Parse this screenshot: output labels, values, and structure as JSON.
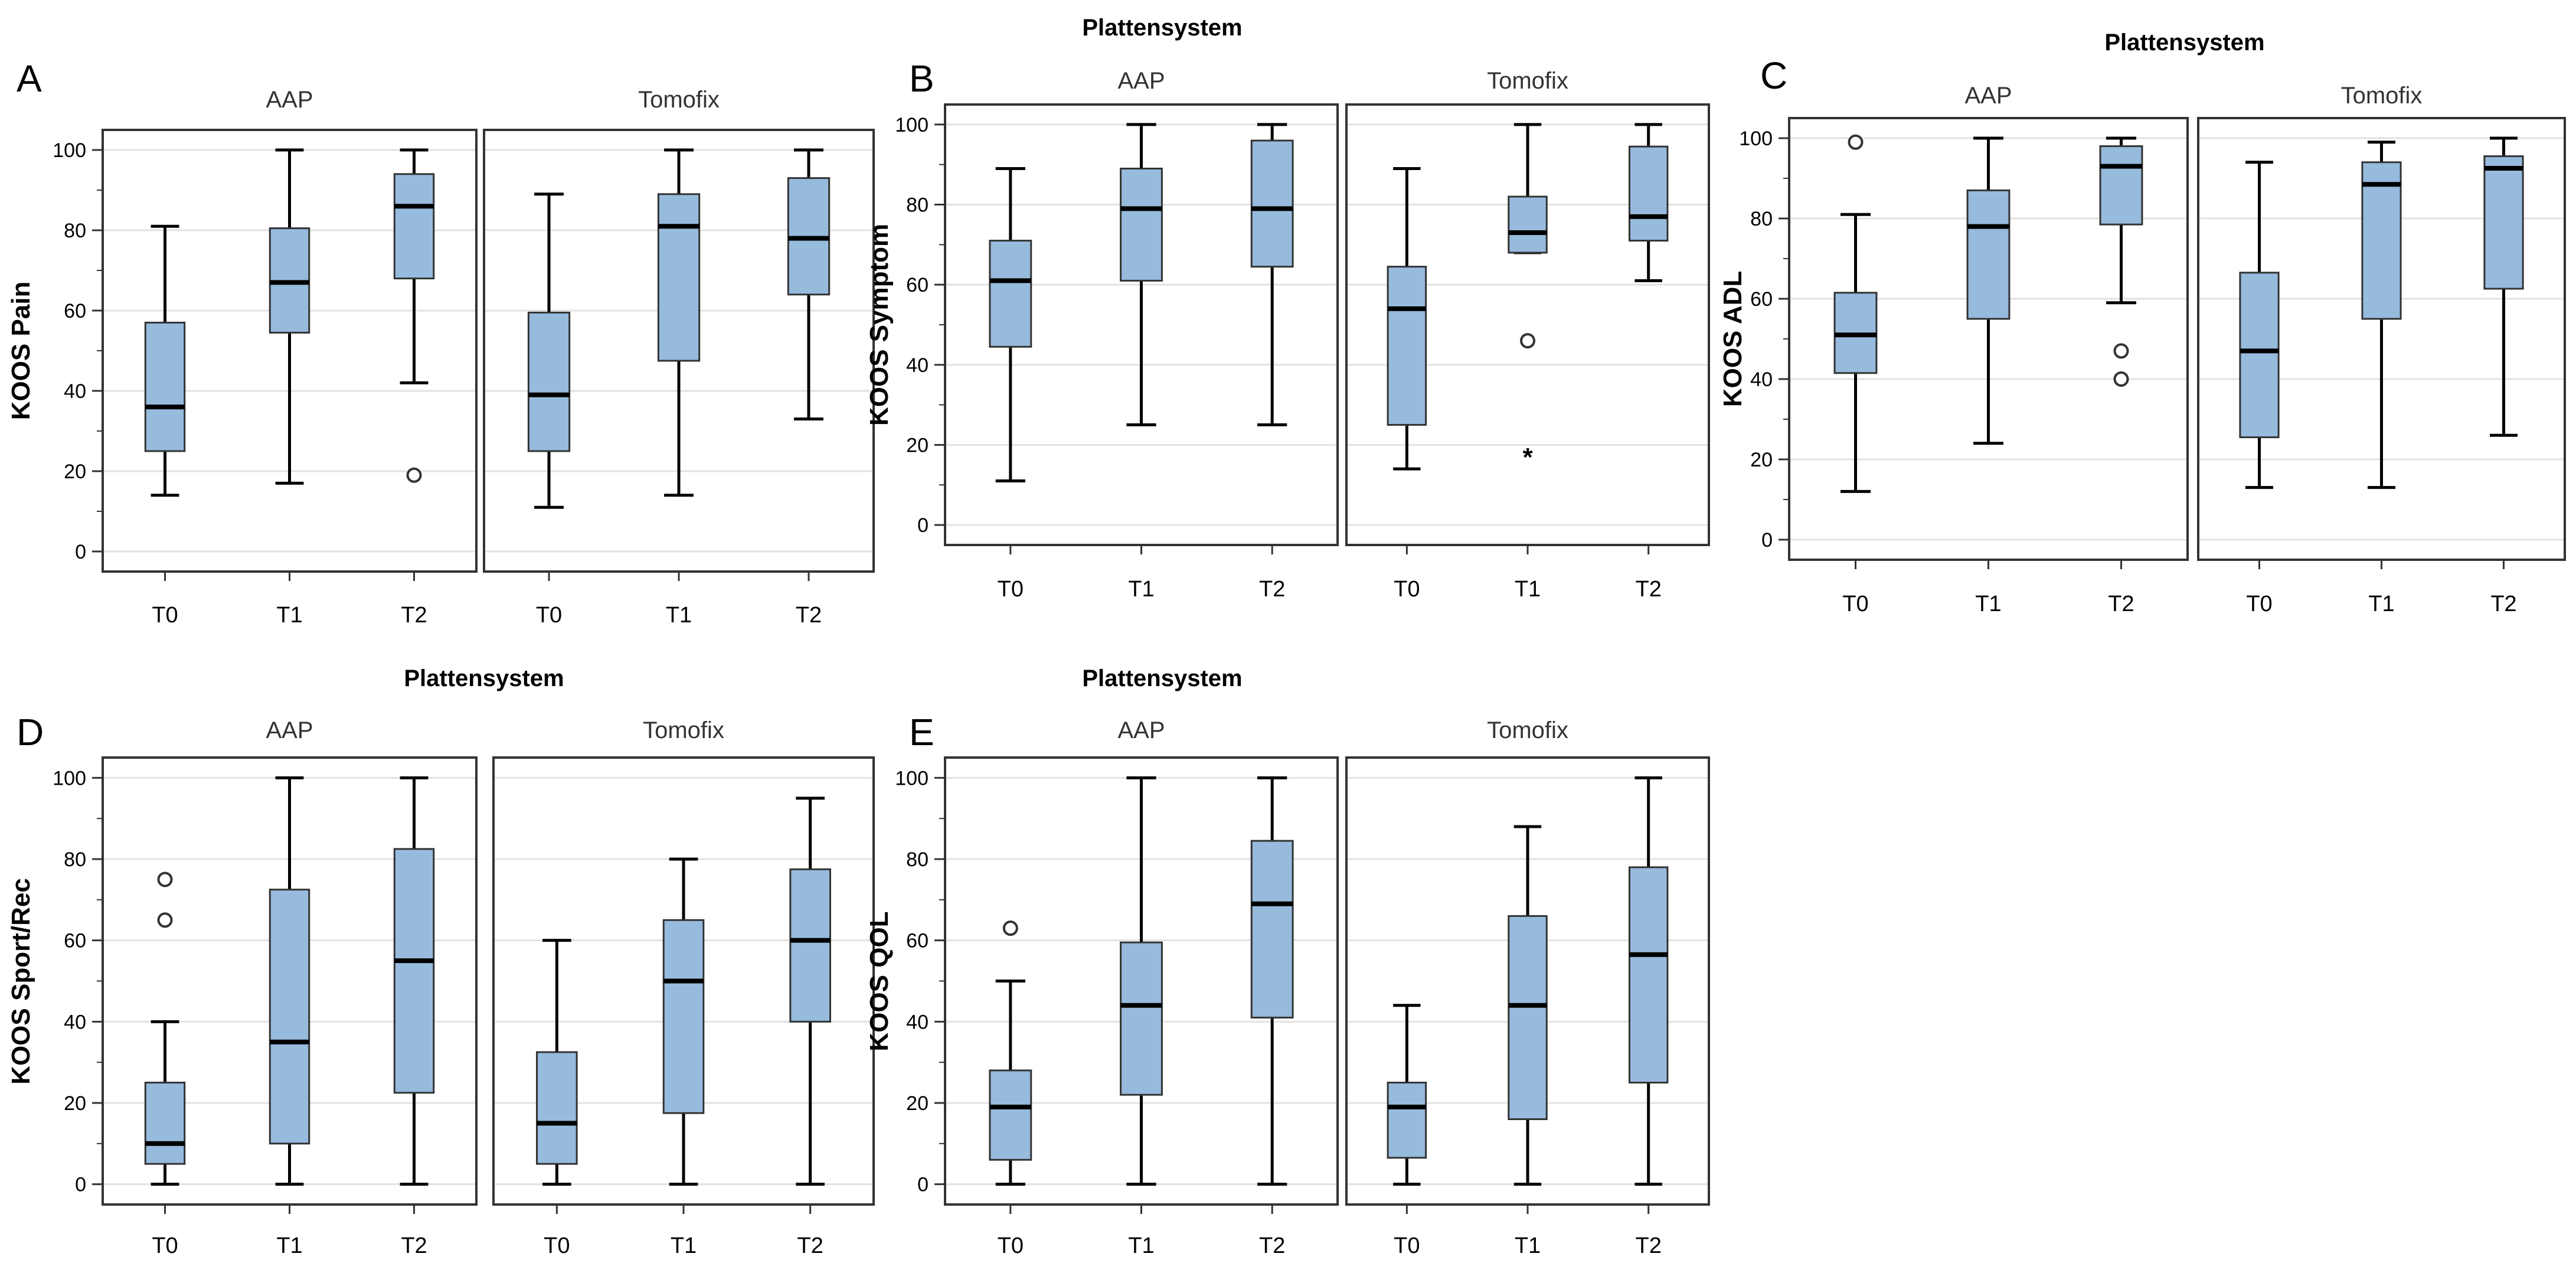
{
  "figure": {
    "common_title": "Plattensystem",
    "groups": [
      "AAP",
      "Tomofix"
    ],
    "timepoints": [
      "T0",
      "T1",
      "T2"
    ],
    "box_color": "#97bbdd"
  },
  "chart_data": [
    {
      "type": "box",
      "panel_letter": "A",
      "title": "",
      "ylabel": "KOOS Pain",
      "xlabel": "",
      "ylim": [
        -5,
        105
      ],
      "yticks": [
        0,
        20,
        40,
        60,
        80,
        100
      ],
      "facets": [
        "AAP",
        "Tomofix"
      ],
      "categories": [
        "T0",
        "T1",
        "T2"
      ],
      "series": [
        {
          "name": "AAP",
          "boxes": [
            {
              "label": "T0",
              "min": 14,
              "q1": 25,
              "median": 36,
              "q3": 57,
              "max": 81,
              "outliers": []
            },
            {
              "label": "T1",
              "min": 17,
              "q1": 54.5,
              "median": 67,
              "q3": 80.5,
              "max": 100,
              "outliers": []
            },
            {
              "label": "T2",
              "min": 42,
              "q1": 68,
              "median": 86,
              "q3": 94,
              "max": 100,
              "outliers": [
                19
              ]
            }
          ]
        },
        {
          "name": "Tomofix",
          "boxes": [
            {
              "label": "T0",
              "min": 11,
              "q1": 25,
              "median": 39,
              "q3": 59.5,
              "max": 89,
              "outliers": []
            },
            {
              "label": "T1",
              "min": 14,
              "q1": 47.5,
              "median": 81,
              "q3": 89,
              "max": 100,
              "outliers": []
            },
            {
              "label": "T2",
              "min": 33,
              "q1": 64,
              "median": 78,
              "q3": 93,
              "max": 100,
              "outliers": []
            }
          ]
        }
      ]
    },
    {
      "type": "box",
      "panel_letter": "B",
      "title": "Plattensystem",
      "ylabel": "KOOS Symptom",
      "xlabel": "",
      "ylim": [
        -5,
        105
      ],
      "yticks": [
        0,
        20,
        40,
        60,
        80,
        100
      ],
      "facets": [
        "AAP",
        "Tomofix"
      ],
      "categories": [
        "T0",
        "T1",
        "T2"
      ],
      "series": [
        {
          "name": "AAP",
          "boxes": [
            {
              "label": "T0",
              "min": 11,
              "q1": 44.5,
              "median": 61,
              "q3": 71,
              "max": 89,
              "outliers": []
            },
            {
              "label": "T1",
              "min": 25,
              "q1": 61,
              "median": 79,
              "q3": 89,
              "max": 100,
              "outliers": []
            },
            {
              "label": "T2",
              "min": 25,
              "q1": 64.5,
              "median": 79,
              "q3": 96,
              "max": 100,
              "outliers": []
            }
          ]
        },
        {
          "name": "Tomofix",
          "boxes": [
            {
              "label": "T0",
              "min": 14,
              "q1": 25,
              "median": 54,
              "q3": 64.5,
              "max": 89,
              "outliers": []
            },
            {
              "label": "T1",
              "min": 68,
              "q1": 68,
              "median": 73,
              "q3": 82,
              "max": 100,
              "outliers": [
                46
              ],
              "extremes": [
                18
              ]
            },
            {
              "label": "T2",
              "min": 61,
              "q1": 71,
              "median": 77,
              "q3": 94.5,
              "max": 100,
              "outliers": []
            }
          ]
        }
      ]
    },
    {
      "type": "box",
      "panel_letter": "C",
      "title": "Plattensystem",
      "ylabel": "KOOS ADL",
      "xlabel": "",
      "ylim": [
        -5,
        105
      ],
      "yticks": [
        0,
        20,
        40,
        60,
        80,
        100
      ],
      "facets": [
        "AAP",
        "Tomofix"
      ],
      "categories": [
        "T0",
        "T1",
        "T2"
      ],
      "series": [
        {
          "name": "AAP",
          "boxes": [
            {
              "label": "T0",
              "min": 12,
              "q1": 41.5,
              "median": 51,
              "q3": 61.5,
              "max": 81,
              "outliers": [
                99
              ]
            },
            {
              "label": "T1",
              "min": 24,
              "q1": 55,
              "median": 78,
              "q3": 87,
              "max": 100,
              "outliers": []
            },
            {
              "label": "T2",
              "min": 59,
              "q1": 78.5,
              "median": 93,
              "q3": 98,
              "max": 100,
              "outliers": [
                47,
                40
              ]
            }
          ]
        },
        {
          "name": "Tomofix",
          "boxes": [
            {
              "label": "T0",
              "min": 13,
              "q1": 25.5,
              "median": 47,
              "q3": 66.5,
              "max": 94,
              "outliers": []
            },
            {
              "label": "T1",
              "min": 13,
              "q1": 55,
              "median": 88.5,
              "q3": 94,
              "max": 99,
              "outliers": []
            },
            {
              "label": "T2",
              "min": 26,
              "q1": 62.5,
              "median": 92.5,
              "q3": 95.5,
              "max": 100,
              "outliers": []
            }
          ]
        }
      ]
    },
    {
      "type": "box",
      "panel_letter": "D",
      "title": "Plattensystem",
      "ylabel": "KOOS Sport/Rec",
      "xlabel": "",
      "ylim": [
        -5,
        105
      ],
      "yticks": [
        0,
        20,
        40,
        60,
        80,
        100
      ],
      "facets": [
        "AAP",
        "Tomofix"
      ],
      "categories": [
        "T0",
        "T1",
        "T2"
      ],
      "series": [
        {
          "name": "AAP",
          "boxes": [
            {
              "label": "T0",
              "min": 0,
              "q1": 5,
              "median": 10,
              "q3": 25,
              "max": 40,
              "outliers": [
                75,
                65
              ]
            },
            {
              "label": "T1",
              "min": 0,
              "q1": 10,
              "median": 35,
              "q3": 72.5,
              "max": 100,
              "outliers": []
            },
            {
              "label": "T2",
              "min": 0,
              "q1": 22.5,
              "median": 55,
              "q3": 82.5,
              "max": 100,
              "outliers": []
            }
          ]
        },
        {
          "name": "Tomofix",
          "boxes": [
            {
              "label": "T0",
              "min": 0,
              "q1": 5,
              "median": 15,
              "q3": 32.5,
              "max": 60,
              "outliers": []
            },
            {
              "label": "T1",
              "min": 0,
              "q1": 17.5,
              "median": 50,
              "q3": 65,
              "max": 80,
              "outliers": []
            },
            {
              "label": "T2",
              "min": 0,
              "q1": 40,
              "median": 60,
              "q3": 77.5,
              "max": 95,
              "outliers": []
            }
          ]
        }
      ]
    },
    {
      "type": "box",
      "panel_letter": "E",
      "title": "Plattensystem",
      "ylabel": "KOOS QOL",
      "xlabel": "",
      "ylim": [
        -5,
        105
      ],
      "yticks": [
        0,
        20,
        40,
        60,
        80,
        100
      ],
      "facets": [
        "AAP",
        "Tomofix"
      ],
      "categories": [
        "T0",
        "T1",
        "T2"
      ],
      "series": [
        {
          "name": "AAP",
          "boxes": [
            {
              "label": "T0",
              "min": 0,
              "q1": 6,
              "median": 19,
              "q3": 28,
              "max": 50,
              "outliers": [
                63
              ]
            },
            {
              "label": "T1",
              "min": 0,
              "q1": 22,
              "median": 44,
              "q3": 59.5,
              "max": 100,
              "outliers": []
            },
            {
              "label": "T2",
              "min": 0,
              "q1": 41,
              "median": 69,
              "q3": 84.5,
              "max": 100,
              "outliers": []
            }
          ]
        },
        {
          "name": "Tomofix",
          "boxes": [
            {
              "label": "T0",
              "min": 0,
              "q1": 6.5,
              "median": 19,
              "q3": 25,
              "max": 44,
              "outliers": []
            },
            {
              "label": "T1",
              "min": 0,
              "q1": 16,
              "median": 44,
              "q3": 66,
              "max": 88,
              "outliers": []
            },
            {
              "label": "T2",
              "min": 0,
              "q1": 25,
              "median": 56.5,
              "q3": 78,
              "max": 100,
              "outliers": []
            }
          ]
        }
      ]
    }
  ]
}
